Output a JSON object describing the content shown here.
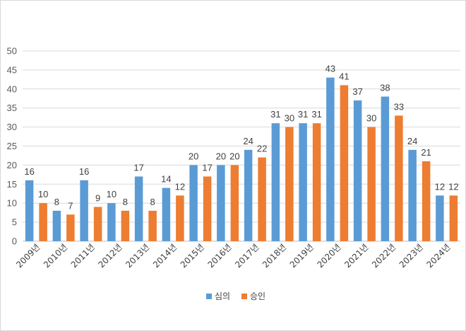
{
  "chart_data": {
    "type": "bar",
    "title": "",
    "xlabel": "",
    "ylabel": "",
    "ylim": [
      0,
      50
    ],
    "yticks": [
      0,
      5,
      10,
      15,
      20,
      25,
      30,
      35,
      40,
      45,
      50
    ],
    "grid": true,
    "legend_position": "bottom",
    "categories": [
      "2009년",
      "2010년",
      "2011년",
      "2012년",
      "2013년",
      "2014년",
      "2015년",
      "2016년",
      "2017년",
      "2018년",
      "2019년",
      "2020년",
      "2021년",
      "2022년",
      "2023년",
      "2024년"
    ],
    "series": [
      {
        "name": "심의",
        "color": "#5b9bd5",
        "values": [
          16,
          8,
          16,
          10,
          17,
          14,
          20,
          20,
          24,
          31,
          31,
          43,
          37,
          38,
          24,
          12
        ]
      },
      {
        "name": "승인",
        "color": "#ed7d31",
        "values": [
          10,
          7,
          9,
          8,
          8,
          12,
          17,
          20,
          22,
          30,
          31,
          41,
          30,
          33,
          21,
          12
        ]
      }
    ]
  }
}
